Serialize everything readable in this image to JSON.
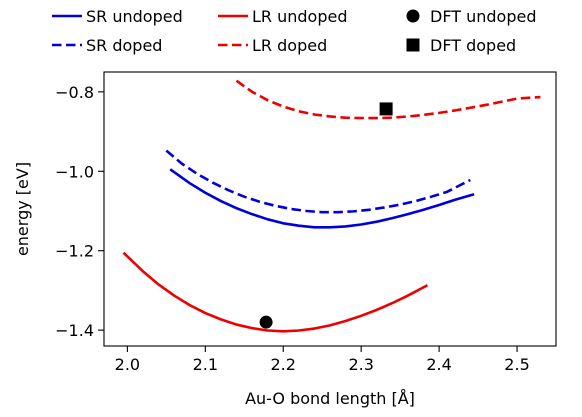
{
  "chart_data": {
    "type": "line",
    "title": "",
    "xlabel": "Au-O bond length [Å]",
    "ylabel": "energy [eV]",
    "xlim": [
      1.97,
      2.55
    ],
    "ylim": [
      -1.44,
      -0.75
    ],
    "xticks": [
      2.0,
      2.1,
      2.2,
      2.3,
      2.4,
      2.5
    ],
    "xtick_labels": [
      "2.0",
      "2.1",
      "2.2",
      "2.3",
      "2.4",
      "2.5"
    ],
    "yticks": [
      -0.8,
      -1.0,
      -1.2,
      -1.4
    ],
    "ytick_labels": [
      "−0.8",
      "−1.0",
      "−1.2",
      "−1.4"
    ],
    "grid": false,
    "legend": {
      "placement": "top (above axes)",
      "entries": [
        {
          "label": "SR undoped",
          "marker": "line-solid",
          "color": "#0000dd"
        },
        {
          "label": "LR undoped",
          "marker": "line-solid",
          "color": "#ee0000"
        },
        {
          "label": "DFT undoped",
          "marker": "circle",
          "color": "#000000"
        },
        {
          "label": "SR doped",
          "marker": "line-dashed",
          "color": "#0000dd"
        },
        {
          "label": "LR doped",
          "marker": "line-dashed",
          "color": "#ee0000"
        },
        {
          "label": "DFT doped",
          "marker": "square",
          "color": "#000000"
        }
      ]
    },
    "series": [
      {
        "name": "SR undoped",
        "style": "solid",
        "color": "#0000dd",
        "x": [
          2.055,
          2.08,
          2.1,
          2.12,
          2.14,
          2.16,
          2.18,
          2.2,
          2.22,
          2.24,
          2.26,
          2.28,
          2.3,
          2.32,
          2.34,
          2.36,
          2.38,
          2.4,
          2.42,
          2.445
        ],
        "y": [
          -0.995,
          -1.03,
          -1.054,
          -1.075,
          -1.093,
          -1.108,
          -1.121,
          -1.131,
          -1.137,
          -1.141,
          -1.141,
          -1.139,
          -1.134,
          -1.127,
          -1.118,
          -1.108,
          -1.097,
          -1.085,
          -1.072,
          -1.058
        ]
      },
      {
        "name": "SR doped",
        "style": "dashed",
        "color": "#0000dd",
        "x": [
          2.05,
          2.07,
          2.09,
          2.11,
          2.13,
          2.15,
          2.17,
          2.19,
          2.21,
          2.23,
          2.25,
          2.27,
          2.29,
          2.31,
          2.33,
          2.35,
          2.37,
          2.39,
          2.41,
          2.44
        ],
        "y": [
          -0.948,
          -0.981,
          -1.007,
          -1.029,
          -1.048,
          -1.064,
          -1.077,
          -1.087,
          -1.095,
          -1.1,
          -1.103,
          -1.103,
          -1.101,
          -1.097,
          -1.091,
          -1.084,
          -1.075,
          -1.064,
          -1.052,
          -1.022
        ]
      },
      {
        "name": "LR undoped",
        "style": "solid",
        "color": "#ee0000",
        "x": [
          1.995,
          2.02,
          2.04,
          2.06,
          2.08,
          2.1,
          2.12,
          2.14,
          2.16,
          2.18,
          2.2,
          2.22,
          2.24,
          2.26,
          2.28,
          2.3,
          2.32,
          2.34,
          2.36,
          2.385
        ],
        "y": [
          -1.205,
          -1.252,
          -1.285,
          -1.313,
          -1.337,
          -1.357,
          -1.373,
          -1.386,
          -1.395,
          -1.401,
          -1.403,
          -1.401,
          -1.396,
          -1.388,
          -1.377,
          -1.364,
          -1.349,
          -1.332,
          -1.313,
          -1.287
        ]
      },
      {
        "name": "LR doped",
        "style": "dashed",
        "color": "#ee0000",
        "x": [
          2.14,
          2.16,
          2.18,
          2.2,
          2.22,
          2.24,
          2.26,
          2.28,
          2.3,
          2.32,
          2.34,
          2.36,
          2.38,
          2.4,
          2.42,
          2.44,
          2.46,
          2.48,
          2.5,
          2.53
        ],
        "y": [
          -0.772,
          -0.8,
          -0.821,
          -0.837,
          -0.849,
          -0.857,
          -0.862,
          -0.865,
          -0.866,
          -0.866,
          -0.865,
          -0.862,
          -0.858,
          -0.853,
          -0.847,
          -0.84,
          -0.833,
          -0.825,
          -0.817,
          -0.813
        ]
      },
      {
        "name": "DFT undoped",
        "style": "marker-circle",
        "color": "#000000",
        "x": [
          2.178
        ],
        "y": [
          -1.38
        ]
      },
      {
        "name": "DFT doped",
        "style": "marker-square",
        "color": "#000000",
        "x": [
          2.332
        ],
        "y": [
          -0.843
        ]
      }
    ]
  }
}
